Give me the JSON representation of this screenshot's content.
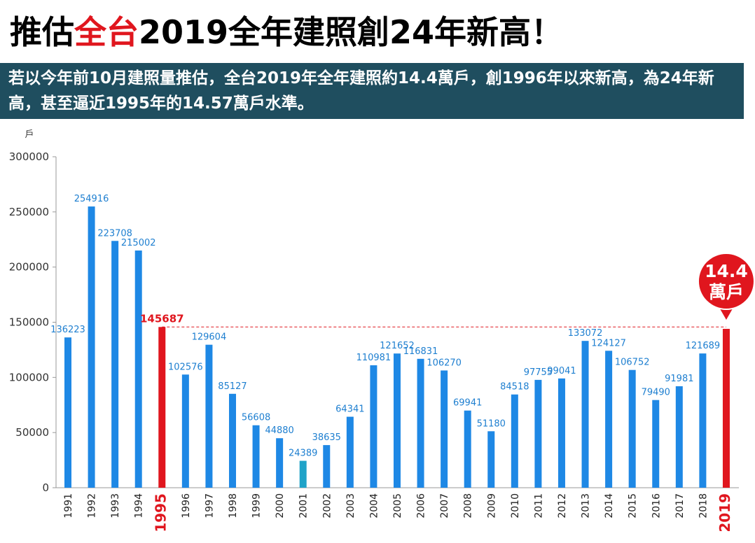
{
  "chart_data": {
    "type": "bar",
    "title_parts": [
      "推估",
      "全台",
      "2019全年建照創24年新高！"
    ],
    "title_colors": [
      "#000000",
      "#e0161e",
      "#000000"
    ],
    "subtitle": "若以今年前10月建照量推估，全台2019年全年建照約14.4萬戶，創1996年以來新高，為24年新高，甚至逼近1995年的14.57萬戶水準。",
    "y_label": "戶",
    "categories": [
      "1991",
      "1992",
      "1993",
      "1994",
      "1995",
      "1996",
      "1997",
      "1998",
      "1999",
      "2000",
      "2001",
      "2002",
      "2003",
      "2004",
      "2005",
      "2006",
      "2007",
      "2008",
      "2009",
      "2010",
      "2011",
      "2012",
      "2013",
      "2014",
      "2015",
      "2016",
      "2017",
      "2018",
      "2019"
    ],
    "values": [
      136223,
      254916,
      223708,
      215002,
      145687,
      102576,
      129604,
      85127,
      56608,
      44880,
      24389,
      38635,
      64341,
      110981,
      121652,
      116831,
      106270,
      69941,
      51180,
      84518,
      97755,
      99041,
      133072,
      124127,
      106752,
      79490,
      91981,
      121689,
      144000
    ],
    "value_labels": [
      "136223",
      "254916",
      "223708",
      "215002",
      "145687",
      "102576",
      "129604",
      "85127",
      "56608",
      "44880",
      "24389",
      "38635",
      "64341",
      "110981",
      "121652",
      "116831",
      "106270",
      "69941",
      "51180",
      "84518",
      "97755",
      "99041",
      "133072",
      "124127",
      "106752",
      "79490",
      "91981",
      "121689",
      null
    ],
    "colors": [
      "#1e88e5",
      "#1e88e5",
      "#1e88e5",
      "#1e88e5",
      "#e0161e",
      "#1e88e5",
      "#1e88e5",
      "#1e88e5",
      "#1e88e5",
      "#1e88e5",
      "#1fa3c8",
      "#1e88e5",
      "#1e88e5",
      "#1e88e5",
      "#1e88e5",
      "#1e88e5",
      "#1e88e5",
      "#1e88e5",
      "#1e88e5",
      "#1e88e5",
      "#1e88e5",
      "#1e88e5",
      "#1e88e5",
      "#1e88e5",
      "#1e88e5",
      "#1e88e5",
      "#1e88e5",
      "#1e88e5",
      "#e0161e"
    ],
    "annotation": [
      "14.4",
      "萬戶"
    ],
    "ylim": [
      0,
      300000
    ],
    "yticks": [
      0,
      50000,
      100000,
      150000,
      200000,
      250000,
      300000
    ]
  }
}
